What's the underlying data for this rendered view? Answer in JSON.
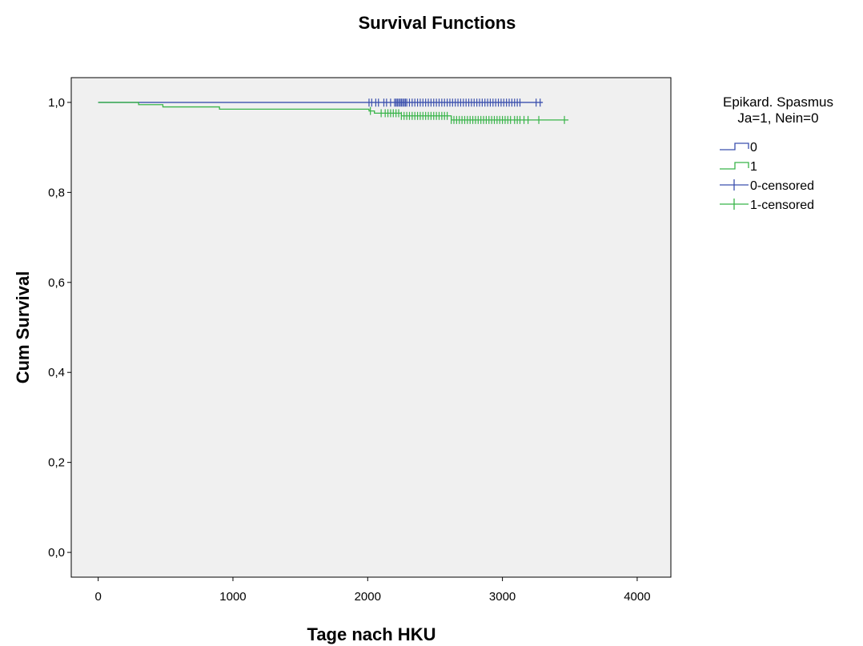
{
  "chart_data": {
    "type": "line",
    "title": "Survival Functions",
    "xlabel": "Tage nach HKU",
    "ylabel": "Cum Survival",
    "xlim": [
      -200,
      4250
    ],
    "ylim": [
      -0.055,
      1.055
    ],
    "xticks": [
      0,
      1000,
      2000,
      3000,
      4000
    ],
    "xtick_labels": [
      "0",
      "1000",
      "2000",
      "3000",
      "4000"
    ],
    "yticks": [
      0.0,
      0.2,
      0.4,
      0.6,
      0.8,
      1.0
    ],
    "ytick_labels": [
      "0,0",
      "0,2",
      "0,4",
      "0,6",
      "0,8",
      "1,0"
    ],
    "grid": false,
    "legend": {
      "position": "right",
      "title_lines": [
        "Epikard. Spasmus",
        "Ja=1, Nein=0"
      ],
      "entries": [
        {
          "label": "0",
          "kind": "step",
          "color": "#3a4fad"
        },
        {
          "label": "1",
          "kind": "step",
          "color": "#38b449"
        },
        {
          "label": "0-censored",
          "kind": "censor",
          "color": "#3a4fad"
        },
        {
          "label": "1-censored",
          "kind": "censor",
          "color": "#38b449"
        }
      ]
    },
    "series": [
      {
        "name": "0",
        "color": "#3a4fad",
        "step_x": [
          0,
          3300
        ],
        "step_y": [
          1.0,
          1.0
        ],
        "censored_x": [
          2010,
          2030,
          2060,
          2080,
          2120,
          2140,
          2170,
          2200,
          2210,
          2220,
          2230,
          2240,
          2250,
          2260,
          2270,
          2280,
          2290,
          2310,
          2330,
          2350,
          2370,
          2390,
          2410,
          2430,
          2450,
          2470,
          2490,
          2510,
          2530,
          2550,
          2570,
          2590,
          2610,
          2630,
          2650,
          2670,
          2690,
          2710,
          2730,
          2750,
          2770,
          2790,
          2810,
          2830,
          2850,
          2870,
          2890,
          2910,
          2930,
          2950,
          2970,
          2990,
          3010,
          3030,
          3050,
          3070,
          3090,
          3110,
          3130,
          3250,
          3280
        ],
        "censored_y": 0.9995
      },
      {
        "name": "1",
        "color": "#38b449",
        "step_x": [
          0,
          300,
          480,
          900,
          2010,
          2050,
          2250,
          2620,
          3490
        ],
        "step_y": [
          1.0,
          0.995,
          0.99,
          0.985,
          0.981,
          0.976,
          0.97,
          0.961,
          0.961
        ],
        "censored_x": [
          2020,
          2100,
          2130,
          2150,
          2170,
          2190,
          2210,
          2230,
          2250,
          2270,
          2290,
          2310,
          2330,
          2350,
          2370,
          2390,
          2410,
          2430,
          2450,
          2470,
          2490,
          2510,
          2530,
          2550,
          2570,
          2590,
          2620,
          2640,
          2660,
          2680,
          2700,
          2720,
          2740,
          2760,
          2780,
          2800,
          2820,
          2840,
          2860,
          2880,
          2900,
          2920,
          2940,
          2960,
          2980,
          3000,
          3020,
          3040,
          3060,
          3090,
          3110,
          3130,
          3160,
          3190,
          3270,
          3460
        ]
      }
    ]
  }
}
